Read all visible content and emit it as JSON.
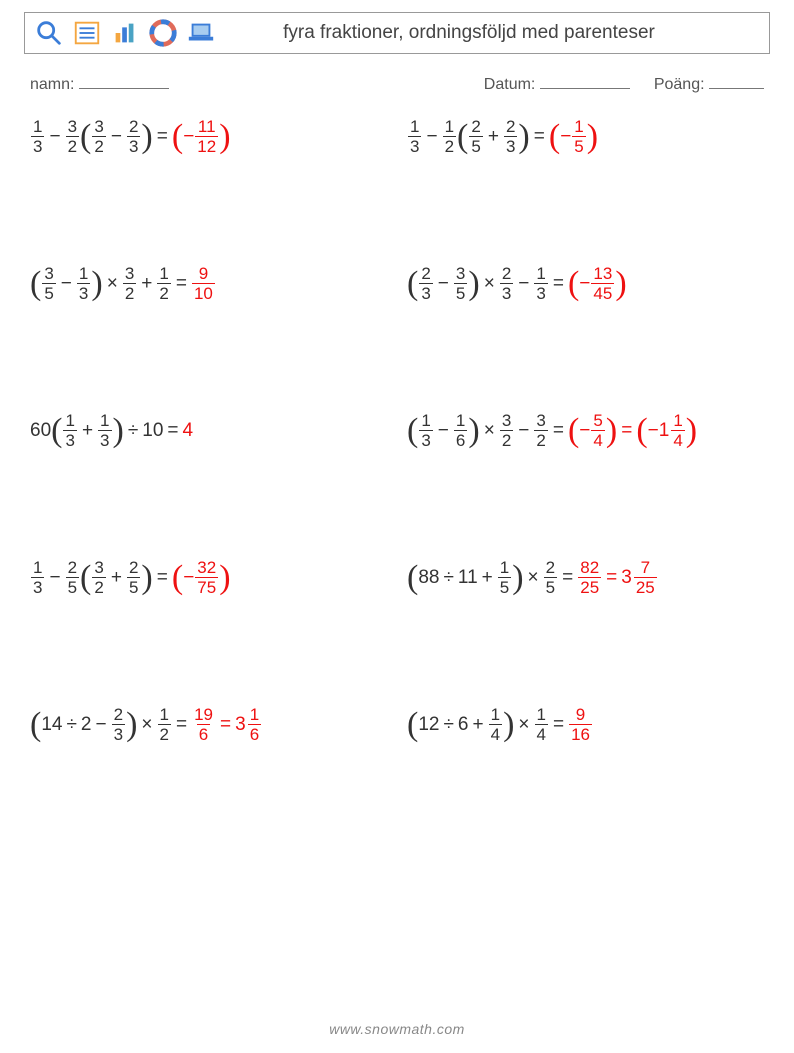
{
  "colors": {
    "text": "#333333",
    "answer": "#ee1111",
    "border": "#999999",
    "footer": "#888888",
    "icon_blue": "#3b7dd8",
    "icon_orange": "#f4a640",
    "icon_teal": "#4aa3c4",
    "icon_red": "#e06b5a"
  },
  "header": {
    "title": "fyra fraktioner, ordningsföljd med parenteser"
  },
  "info": {
    "name_label": "namn:",
    "date_label": "Datum:",
    "score_label": "Poäng:"
  },
  "footer": "www.snowmath.com",
  "problems": [
    {
      "expr": [
        {
          "t": "frac",
          "n": "1",
          "d": "3"
        },
        {
          "t": "op",
          "v": "−"
        },
        {
          "t": "frac",
          "n": "3",
          "d": "2"
        },
        {
          "t": "lp"
        },
        {
          "t": "frac",
          "n": "3",
          "d": "2"
        },
        {
          "t": "op",
          "v": "−"
        },
        {
          "t": "frac",
          "n": "2",
          "d": "3"
        },
        {
          "t": "rp"
        },
        {
          "t": "op",
          "v": "="
        }
      ],
      "ans": [
        {
          "t": "lp"
        },
        {
          "t": "txt",
          "v": "−"
        },
        {
          "t": "frac",
          "n": "11",
          "d": "12"
        },
        {
          "t": "rp"
        }
      ]
    },
    {
      "expr": [
        {
          "t": "frac",
          "n": "1",
          "d": "3"
        },
        {
          "t": "op",
          "v": "−"
        },
        {
          "t": "frac",
          "n": "1",
          "d": "2"
        },
        {
          "t": "lp"
        },
        {
          "t": "frac",
          "n": "2",
          "d": "5"
        },
        {
          "t": "op",
          "v": "+"
        },
        {
          "t": "frac",
          "n": "2",
          "d": "3"
        },
        {
          "t": "rp"
        },
        {
          "t": "op",
          "v": "="
        }
      ],
      "ans": [
        {
          "t": "lp"
        },
        {
          "t": "txt",
          "v": "−"
        },
        {
          "t": "frac",
          "n": "1",
          "d": "5"
        },
        {
          "t": "rp"
        }
      ]
    },
    {
      "expr": [
        {
          "t": "lp"
        },
        {
          "t": "frac",
          "n": "3",
          "d": "5"
        },
        {
          "t": "op",
          "v": "−"
        },
        {
          "t": "frac",
          "n": "1",
          "d": "3"
        },
        {
          "t": "rp"
        },
        {
          "t": "op",
          "v": "×"
        },
        {
          "t": "frac",
          "n": "3",
          "d": "2"
        },
        {
          "t": "op",
          "v": "+"
        },
        {
          "t": "frac",
          "n": "1",
          "d": "2"
        },
        {
          "t": "op",
          "v": "="
        }
      ],
      "ans": [
        {
          "t": "frac",
          "n": "9",
          "d": "10"
        }
      ]
    },
    {
      "expr": [
        {
          "t": "lp"
        },
        {
          "t": "frac",
          "n": "2",
          "d": "3"
        },
        {
          "t": "op",
          "v": "−"
        },
        {
          "t": "frac",
          "n": "3",
          "d": "5"
        },
        {
          "t": "rp"
        },
        {
          "t": "op",
          "v": "×"
        },
        {
          "t": "frac",
          "n": "2",
          "d": "3"
        },
        {
          "t": "op",
          "v": "−"
        },
        {
          "t": "frac",
          "n": "1",
          "d": "3"
        },
        {
          "t": "op",
          "v": "="
        }
      ],
      "ans": [
        {
          "t": "lp"
        },
        {
          "t": "txt",
          "v": "−"
        },
        {
          "t": "frac",
          "n": "13",
          "d": "45"
        },
        {
          "t": "rp"
        }
      ]
    },
    {
      "expr": [
        {
          "t": "txt",
          "v": "60"
        },
        {
          "t": "lp"
        },
        {
          "t": "frac",
          "n": "1",
          "d": "3"
        },
        {
          "t": "op",
          "v": "+"
        },
        {
          "t": "frac",
          "n": "1",
          "d": "3"
        },
        {
          "t": "rp"
        },
        {
          "t": "op",
          "v": "÷"
        },
        {
          "t": "txt",
          "v": "10"
        },
        {
          "t": "op",
          "v": "="
        }
      ],
      "ans": [
        {
          "t": "txt",
          "v": "4"
        }
      ]
    },
    {
      "expr": [
        {
          "t": "lp"
        },
        {
          "t": "frac",
          "n": "1",
          "d": "3"
        },
        {
          "t": "op",
          "v": "−"
        },
        {
          "t": "frac",
          "n": "1",
          "d": "6"
        },
        {
          "t": "rp"
        },
        {
          "t": "op",
          "v": "×"
        },
        {
          "t": "frac",
          "n": "3",
          "d": "2"
        },
        {
          "t": "op",
          "v": "−"
        },
        {
          "t": "frac",
          "n": "3",
          "d": "2"
        },
        {
          "t": "op",
          "v": "="
        }
      ],
      "ans": [
        {
          "t": "lp"
        },
        {
          "t": "txt",
          "v": "−"
        },
        {
          "t": "frac",
          "n": "5",
          "d": "4"
        },
        {
          "t": "rp"
        },
        {
          "t": "op",
          "v": "="
        },
        {
          "t": "lp"
        },
        {
          "t": "txt",
          "v": "−"
        },
        {
          "t": "mixed",
          "w": "1",
          "n": "1",
          "d": "4"
        },
        {
          "t": "rp"
        }
      ]
    },
    {
      "expr": [
        {
          "t": "frac",
          "n": "1",
          "d": "3"
        },
        {
          "t": "op",
          "v": "−"
        },
        {
          "t": "frac",
          "n": "2",
          "d": "5"
        },
        {
          "t": "lp"
        },
        {
          "t": "frac",
          "n": "3",
          "d": "2"
        },
        {
          "t": "op",
          "v": "+"
        },
        {
          "t": "frac",
          "n": "2",
          "d": "5"
        },
        {
          "t": "rp"
        },
        {
          "t": "op",
          "v": "="
        }
      ],
      "ans": [
        {
          "t": "lp"
        },
        {
          "t": "txt",
          "v": "−"
        },
        {
          "t": "frac",
          "n": "32",
          "d": "75"
        },
        {
          "t": "rp"
        }
      ]
    },
    {
      "expr": [
        {
          "t": "lp"
        },
        {
          "t": "txt",
          "v": "88"
        },
        {
          "t": "op",
          "v": "÷"
        },
        {
          "t": "txt",
          "v": "11"
        },
        {
          "t": "op",
          "v": "+"
        },
        {
          "t": "frac",
          "n": "1",
          "d": "5"
        },
        {
          "t": "rp"
        },
        {
          "t": "op",
          "v": "×"
        },
        {
          "t": "frac",
          "n": "2",
          "d": "5"
        },
        {
          "t": "op",
          "v": "="
        }
      ],
      "ans": [
        {
          "t": "frac",
          "n": "82",
          "d": "25"
        },
        {
          "t": "op",
          "v": "="
        },
        {
          "t": "mixed",
          "w": "3",
          "n": "7",
          "d": "25"
        }
      ]
    },
    {
      "expr": [
        {
          "t": "lp"
        },
        {
          "t": "txt",
          "v": "14"
        },
        {
          "t": "op",
          "v": "÷"
        },
        {
          "t": "txt",
          "v": "2"
        },
        {
          "t": "op",
          "v": "−"
        },
        {
          "t": "frac",
          "n": "2",
          "d": "3"
        },
        {
          "t": "rp"
        },
        {
          "t": "op",
          "v": "×"
        },
        {
          "t": "frac",
          "n": "1",
          "d": "2"
        },
        {
          "t": "op",
          "v": "="
        }
      ],
      "ans": [
        {
          "t": "frac",
          "n": "19",
          "d": "6"
        },
        {
          "t": "op",
          "v": "="
        },
        {
          "t": "mixed",
          "w": "3",
          "n": "1",
          "d": "6"
        }
      ]
    },
    {
      "expr": [
        {
          "t": "lp"
        },
        {
          "t": "txt",
          "v": "12"
        },
        {
          "t": "op",
          "v": "÷"
        },
        {
          "t": "txt",
          "v": "6"
        },
        {
          "t": "op",
          "v": "+"
        },
        {
          "t": "frac",
          "n": "1",
          "d": "4"
        },
        {
          "t": "rp"
        },
        {
          "t": "op",
          "v": "×"
        },
        {
          "t": "frac",
          "n": "1",
          "d": "4"
        },
        {
          "t": "op",
          "v": "="
        }
      ],
      "ans": [
        {
          "t": "frac",
          "n": "9",
          "d": "16"
        }
      ]
    }
  ]
}
